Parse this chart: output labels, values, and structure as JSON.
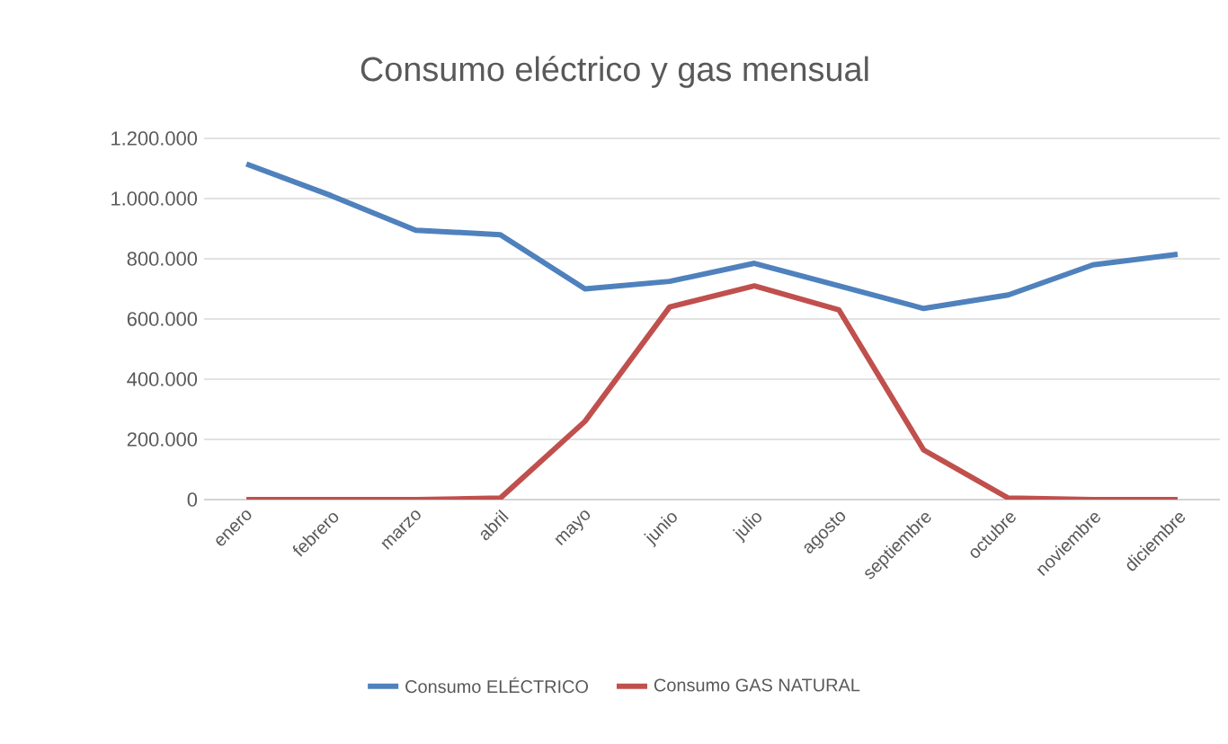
{
  "chart_data": {
    "type": "line",
    "title": "Consumo eléctrico y gas mensual",
    "categories": [
      "enero",
      "febrero",
      "marzo",
      "abril",
      "mayo",
      "junio",
      "julio",
      "agosto",
      "septiembre",
      "octubre",
      "noviembre",
      "diciembre"
    ],
    "series": [
      {
        "name": "Consumo ELÉCTRICO",
        "color": "#4f81bd",
        "values": [
          1115000,
          1010000,
          895000,
          880000,
          700000,
          725000,
          785000,
          710000,
          635000,
          680000,
          780000,
          815000
        ]
      },
      {
        "name": "Consumo GAS NATURAL",
        "color": "#c0504d",
        "values": [
          0,
          0,
          0,
          5000,
          260000,
          640000,
          710000,
          630000,
          165000,
          5000,
          0,
          0
        ]
      }
    ],
    "ylim": [
      0,
      1200000
    ],
    "yticks": [
      0,
      {
        "value": 200000,
        "label": "200.000"
      },
      {
        "value": 400000,
        "label": "400.000"
      },
      {
        "value": 600000,
        "label": "600.000"
      },
      {
        "value": 800000,
        "label": "800.000"
      },
      {
        "value": 1000000,
        "label": "1.000.000"
      },
      {
        "value": 1200000,
        "label": "1.200.000"
      }
    ],
    "grid": "y",
    "legend": "bottom",
    "marker": "none",
    "line_style": "solid"
  }
}
